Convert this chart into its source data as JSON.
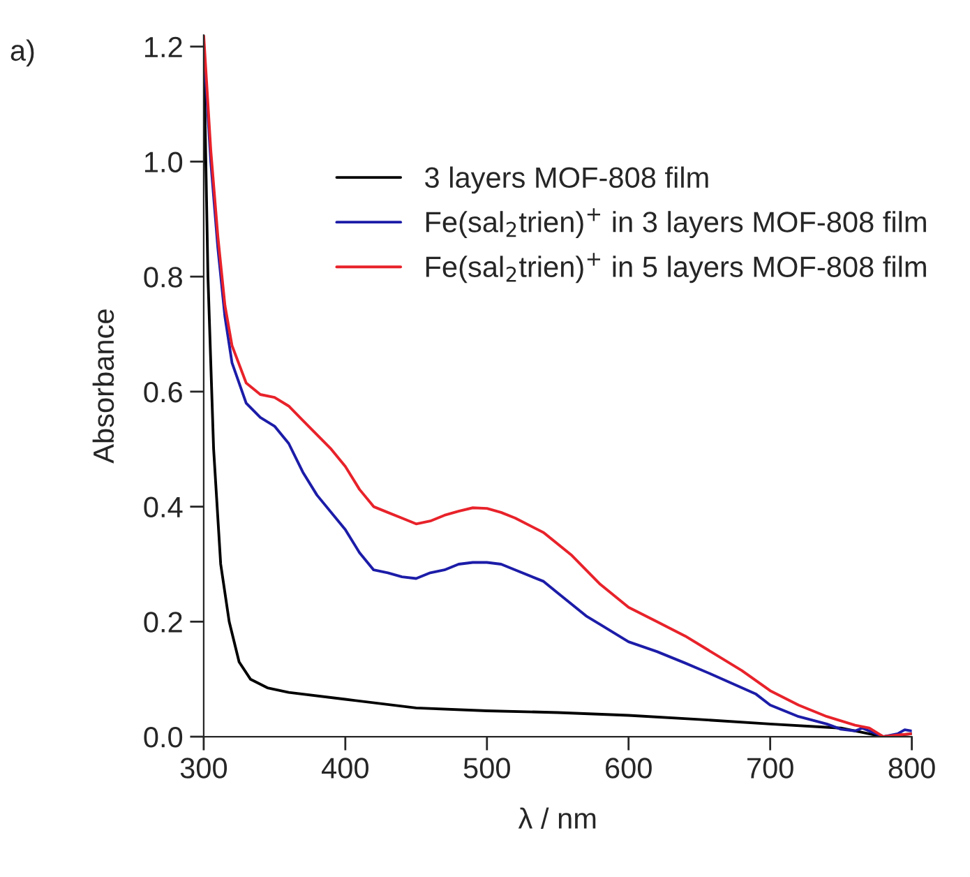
{
  "chart_data": {
    "type": "line",
    "xlabel": "λ / nm",
    "ylabel": "Absorbance",
    "annotations": [
      "a)"
    ],
    "xlim": [
      300,
      800
    ],
    "xticks": [
      300,
      400,
      500,
      600,
      700,
      800
    ],
    "ylim": [
      0,
      1.22
    ],
    "yticks": [
      {
        "value": 0,
        "label": "0.0"
      },
      {
        "value": 0.2,
        "label": "0.2"
      },
      {
        "value": 0.4,
        "label": "0.4"
      },
      {
        "value": 0.6,
        "label": "0.6"
      },
      {
        "value": 0.8,
        "label": "0.8"
      },
      {
        "value": 1.0,
        "label": "1.0"
      },
      {
        "value": 1.2,
        "label": "1.2"
      }
    ],
    "grid": false,
    "legend": "top right",
    "marker": "none",
    "line_style": "solid",
    "series": [
      {
        "name": "3 layers MOF-808 film",
        "color": "#000000",
        "x": [
          300,
          303,
          307,
          312,
          318,
          325,
          333,
          345,
          360,
          400,
          450,
          500,
          550,
          600,
          650,
          700,
          750,
          780,
          800
        ],
        "values": [
          1.2,
          0.8,
          0.5,
          0.3,
          0.2,
          0.13,
          0.1,
          0.085,
          0.077,
          0.065,
          0.05,
          0.045,
          0.042,
          0.037,
          0.03,
          0.022,
          0.015,
          0.0,
          0.005
        ]
      },
      {
        "name": "Fe(sal$_{2}$trien)$^{+}$ in 3 layers MOF-808 film",
        "color": "#1c1ca8",
        "x": [
          300,
          305,
          310,
          315,
          320,
          330,
          340,
          350,
          360,
          370,
          380,
          400,
          410,
          420,
          430,
          440,
          450,
          460,
          470,
          480,
          490,
          500,
          510,
          520,
          540,
          550,
          570,
          580,
          600,
          620,
          640,
          660,
          680,
          690,
          700,
          720,
          740,
          750,
          760,
          765,
          780,
          790,
          795,
          800
        ],
        "values": [
          1.2,
          1.0,
          0.85,
          0.73,
          0.65,
          0.58,
          0.555,
          0.54,
          0.51,
          0.46,
          0.42,
          0.36,
          0.32,
          0.29,
          0.285,
          0.278,
          0.275,
          0.285,
          0.29,
          0.3,
          0.303,
          0.303,
          0.3,
          0.29,
          0.27,
          0.25,
          0.21,
          0.195,
          0.165,
          0.148,
          0.128,
          0.107,
          0.085,
          0.074,
          0.055,
          0.035,
          0.022,
          0.013,
          0.01,
          0.015,
          0.0,
          0.005,
          0.012,
          0.01
        ]
      },
      {
        "name": "Fe(sal$_{2}$trien)$^{+}$ in 5 layers MOF-808 film",
        "color": "#e8222a",
        "x": [
          300,
          305,
          310,
          315,
          320,
          330,
          340,
          350,
          360,
          370,
          380,
          390,
          400,
          410,
          420,
          430,
          440,
          450,
          460,
          470,
          480,
          490,
          500,
          510,
          520,
          540,
          560,
          580,
          600,
          620,
          640,
          660,
          680,
          700,
          720,
          730,
          740,
          760,
          770,
          780,
          790,
          800
        ],
        "values": [
          1.22,
          1.02,
          0.87,
          0.75,
          0.68,
          0.615,
          0.595,
          0.59,
          0.575,
          0.55,
          0.525,
          0.5,
          0.47,
          0.43,
          0.4,
          0.39,
          0.38,
          0.37,
          0.375,
          0.385,
          0.392,
          0.398,
          0.397,
          0.39,
          0.38,
          0.355,
          0.315,
          0.265,
          0.225,
          0.2,
          0.175,
          0.145,
          0.115,
          0.08,
          0.055,
          0.045,
          0.035,
          0.02,
          0.015,
          0.0,
          0.003,
          0.005
        ]
      }
    ]
  }
}
